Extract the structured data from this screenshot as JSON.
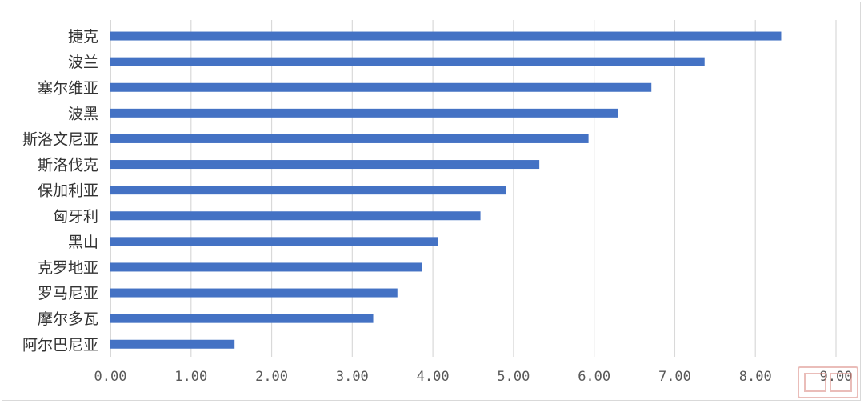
{
  "chart_data": {
    "type": "bar",
    "orientation": "horizontal",
    "title": "",
    "xlabel": "",
    "ylabel": "",
    "categories": [
      "捷克",
      "波兰",
      "塞尔维亚",
      "波黑",
      "斯洛文尼亚",
      "斯洛伐克",
      "保加利亚",
      "匈牙利",
      "黑山",
      "克罗地亚",
      "罗马尼亚",
      "摩尔多瓦",
      "阿尔巴尼亚"
    ],
    "values": [
      8.32,
      7.37,
      6.71,
      6.3,
      5.93,
      5.32,
      4.91,
      4.59,
      4.06,
      3.86,
      3.56,
      3.26,
      1.54
    ],
    "xlim": [
      0,
      9
    ],
    "xticks": [
      "0.00",
      "1.00",
      "2.00",
      "3.00",
      "4.00",
      "5.00",
      "6.00",
      "7.00",
      "8.00",
      "9.00"
    ],
    "bar_color": "#4472c4",
    "grid": "vertical",
    "grid_color": "#d9d9d9",
    "legend": "none"
  },
  "watermark": {
    "name": "seal-stamp",
    "color": "#d98880"
  }
}
